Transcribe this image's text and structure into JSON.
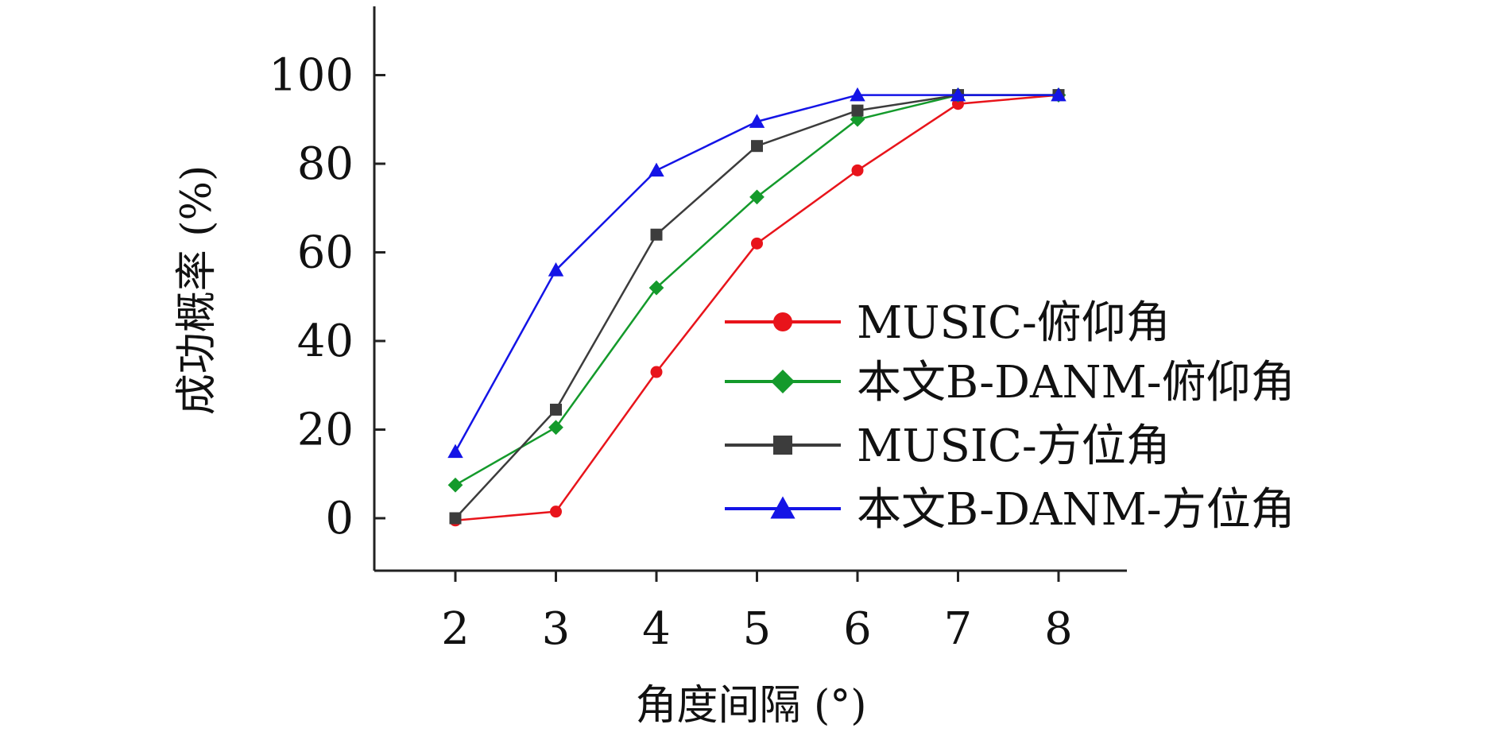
{
  "chart_data": {
    "type": "line",
    "title": "",
    "xlabel": "角度间隔 (°)",
    "ylabel": "成功概率 (%)",
    "x": [
      2,
      3,
      4,
      5,
      6,
      7,
      8
    ],
    "xlim": [
      1.2,
      8.7
    ],
    "ylim": [
      -12,
      112
    ],
    "xticks": [
      "2",
      "3",
      "4",
      "5",
      "6",
      "7",
      "8"
    ],
    "yticks": [
      "0",
      "20",
      "40",
      "60",
      "80",
      "100"
    ],
    "grid": false,
    "legend_position": "right",
    "series": [
      {
        "name": "MUSIC-俯仰角",
        "color": "#e8141b",
        "marker": "circle",
        "values": [
          -0.5,
          1.5,
          33,
          62,
          78.5,
          93.5,
          95.5
        ]
      },
      {
        "name": "本文B-DANM-俯仰角",
        "color": "#149a2b",
        "marker": "diamond",
        "values": [
          7.5,
          20.5,
          52,
          72.5,
          90,
          95.5,
          95.5
        ]
      },
      {
        "name": "MUSIC-方位角",
        "color": "#3c3c3c",
        "marker": "square",
        "values": [
          0,
          24.5,
          64,
          84,
          92,
          95.5,
          95.5
        ]
      },
      {
        "name": "本文B-DANM-方位角",
        "color": "#1414e6",
        "marker": "triangle",
        "values": [
          15,
          56,
          78.5,
          89.5,
          95.5,
          95.5,
          95.5
        ]
      }
    ]
  }
}
